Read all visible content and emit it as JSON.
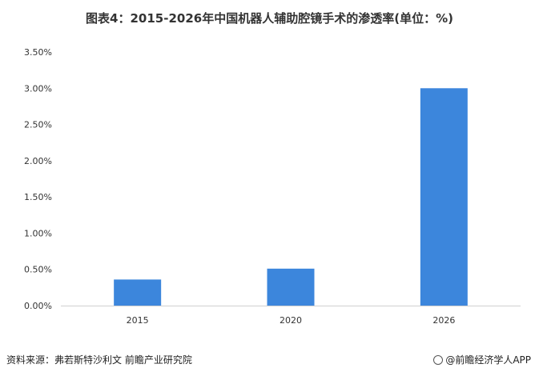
{
  "title": "图表4：2015-2026年中国机器人辅助腔镜手术的渗透率(单位：%)",
  "source": "资料来源：弗若斯特沙利文 前瞻产业研究院",
  "brand": "@前瞻经济学人APP",
  "colors": {
    "bar": "#3C86DC",
    "axis": "#d0d0d0",
    "text": "#333333"
  },
  "chart_data": {
    "type": "bar",
    "categories": [
      "2015",
      "2020",
      "2026"
    ],
    "values": [
      0.36,
      0.51,
      3.0
    ],
    "unit": "%",
    "ylim": [
      0,
      3.5
    ],
    "yticks": [
      "0.00%",
      "0.50%",
      "1.00%",
      "1.50%",
      "2.00%",
      "2.50%",
      "3.00%",
      "3.50%"
    ],
    "ytick_values": [
      0,
      0.5,
      1.0,
      1.5,
      2.0,
      2.5,
      3.0,
      3.5
    ],
    "grid": false,
    "legend": "none"
  }
}
